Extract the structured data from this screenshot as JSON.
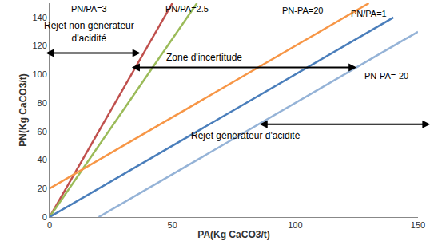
{
  "chart_data": {
    "type": "line",
    "x_label": "PA(Kg CaCO3/t)",
    "y_label": "PN(Kg CaCO3/t)",
    "xlim": [
      0,
      150
    ],
    "xticks": [
      0,
      50,
      100,
      150
    ],
    "ylim": [
      0,
      150
    ],
    "yticks": [
      0,
      20,
      40,
      60,
      80,
      100,
      120,
      140
    ],
    "grid": false,
    "series": [
      {
        "name": "PN/PA=3",
        "color": "#c0504d",
        "x": [
          0,
          50
        ],
        "values": [
          0,
          150
        ],
        "label_position": [
          16,
          146
        ]
      },
      {
        "name": "PN/PA=2.5",
        "color": "#9bbb59",
        "x": [
          0,
          60
        ],
        "values": [
          0,
          150
        ],
        "label_position": [
          56,
          146
        ]
      },
      {
        "name": "PN-PA=20",
        "color": "#f79646",
        "x": [
          0,
          130
        ],
        "values": [
          20,
          150
        ],
        "label_position": [
          103,
          145
        ]
      },
      {
        "name": "PN/PA=1",
        "color": "#4a7ebb",
        "x": [
          0,
          140
        ],
        "values": [
          0,
          140
        ],
        "label_position": [
          130,
          143
        ]
      },
      {
        "name": "PN-PA=-20",
        "color": "#95b3d7",
        "x": [
          20,
          150
        ],
        "values": [
          0,
          130
        ],
        "label_position": [
          137,
          99
        ]
      }
    ],
    "annotations": [
      {
        "text": "Rejet non générateur\nd'acidité",
        "x": 16,
        "y": 130
      },
      {
        "text": "Zone d'incertitude",
        "x": 63,
        "y": 112
      },
      {
        "text": "Rejet générateur d'acidité",
        "x": 80,
        "y": 57
      }
    ],
    "arrows": [
      {
        "x": [
          -2,
          37
        ],
        "y": 115,
        "arrow": "both"
      },
      {
        "x": [
          33,
          125
        ],
        "y": 105,
        "arrow": "both"
      },
      {
        "x": [
          85,
          155
        ],
        "y": 65,
        "arrow": "both"
      }
    ]
  }
}
